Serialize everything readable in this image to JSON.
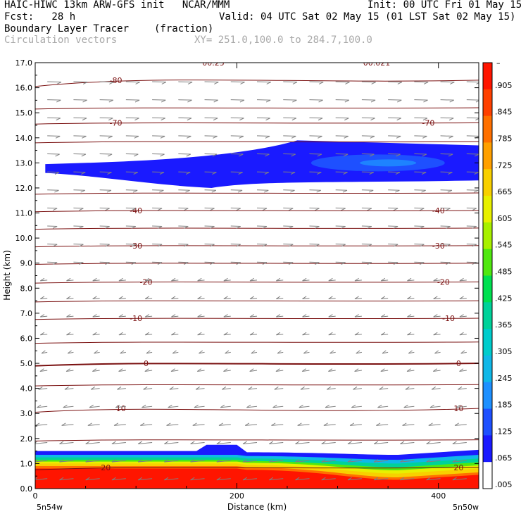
{
  "header": {
    "line1_left": "HAIC-HIWC 13km ARW-GFS init   NCAR/MMM",
    "line1_right": "Init: 00 UTC Fri 01 May 15",
    "line2_left": "Fcst:   28 h",
    "line2_right": "Valid: 04 UTC Sat 02 May 15 (01 LST Sat 02 May 15)",
    "line3_left": "Boundary Layer Tracer",
    "line3_mid": "(fraction)",
    "line4_left": "Circulation vectors",
    "line4_mid": "XY= 251.0,100.0 to 284.7,100.0"
  },
  "colors": {
    "contour": "#7a1010",
    "vector": "#808080",
    "tracer_ramp": [
      "#ffffff",
      "#1a1aff",
      "#1e50ff",
      "#1e90ff",
      "#10b8e8",
      "#00cccc",
      "#00d29a",
      "#00e050",
      "#50e810",
      "#a8f000",
      "#e8f000",
      "#f8d000",
      "#ffa000",
      "#ff7000",
      "#ff4000",
      "#ff1500"
    ]
  },
  "chart_data": {
    "type": "heatmap",
    "title": "Boundary Layer Tracer",
    "units": "(fraction)",
    "xlabel": "Distance (km)",
    "ylabel": "Height (km)",
    "xlim": [
      0,
      440
    ],
    "ylim": [
      0,
      17
    ],
    "x_ticks": [
      "0",
      "200",
      "400"
    ],
    "x_tick_values": [
      0,
      200,
      400
    ],
    "x_end_labels": {
      "left": "5n54w",
      "right": "5n50w"
    },
    "y_ticks": [
      "0.0",
      "1.0",
      "2.0",
      "3.0",
      "4.0",
      "5.0",
      "6.0",
      "7.0",
      "8.0",
      "9.0",
      "10.0",
      "11.0",
      "12.0",
      "13.0",
      "14.0",
      "15.0",
      "16.0",
      "17.0"
    ],
    "y_tick_values": [
      0,
      1,
      2,
      3,
      4,
      5,
      6,
      7,
      8,
      9,
      10,
      11,
      12,
      13,
      14,
      15,
      16,
      17
    ],
    "colorbar_labels": [
      ".005",
      ".065",
      ".125",
      ".185",
      ".245",
      ".305",
      ".365",
      ".425",
      ".485",
      ".545",
      ".605",
      ".665",
      ".725",
      ".785",
      ".845",
      ".905"
    ],
    "colorbar_values": [
      0.005,
      0.065,
      0.125,
      0.185,
      0.245,
      0.305,
      0.365,
      0.425,
      0.485,
      0.545,
      0.605,
      0.665,
      0.725,
      0.785,
      0.845,
      0.905
    ],
    "colorbar_top_label": "–",
    "contours": [
      {
        "label": "-80",
        "height": 16.3
      },
      {
        "label": "",
        "height": 15.2
      },
      {
        "label": "-70",
        "height": 14.6
      },
      {
        "label": "",
        "height": 13.85
      },
      {
        "label": "",
        "height": 11.8
      },
      {
        "label": "-40",
        "height": 11.1
      },
      {
        "label": "",
        "height": 10.4
      },
      {
        "label": "-30",
        "height": 9.7
      },
      {
        "label": "",
        "height": 9.0
      },
      {
        "label": "-20",
        "height": 8.25
      },
      {
        "label": "",
        "height": 7.5
      },
      {
        "label": "-10",
        "height": 6.8
      },
      {
        "label": "",
        "height": 5.85
      },
      {
        "label": "0",
        "height": 5.0
      },
      {
        "label": "",
        "height": 4.15
      },
      {
        "label": "10",
        "height": 3.2
      },
      {
        "label": "",
        "height": 1.95
      },
      {
        "label": "20",
        "height": 0.85
      }
    ],
    "top_contour_labels": [
      "00.25",
      "00.021"
    ],
    "upper_tracer_layer": {
      "x_start": 10,
      "bottom": [
        12.4,
        12.0,
        12.3
      ],
      "top": [
        12.9,
        13.3,
        13.9
      ],
      "value": 0.05
    },
    "boundary_layer": {
      "top_height": 1.5,
      "core_value": 0.9
    }
  }
}
